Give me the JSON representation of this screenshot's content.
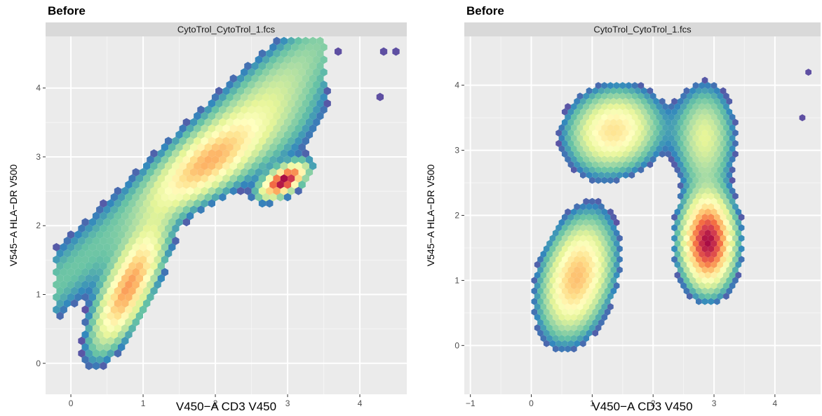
{
  "chart_data": [
    {
      "type": "heatmap",
      "subtype": "hexbin",
      "title": "Before",
      "facet_label": "CytoTrol_CytoTrol_1.fcs",
      "xlabel": "V450−A CD3 V450",
      "ylabel": "V545−A HLA−DR V500",
      "xlim": [
        -0.35,
        4.65
      ],
      "ylim": [
        -0.45,
        4.75
      ],
      "x_ticks": [
        0,
        1,
        2,
        3,
        4
      ],
      "y_ticks": [
        0,
        1,
        2,
        3,
        4
      ],
      "grid": true,
      "legend": "none",
      "colormap": "spectral (low: purple, high: dark red)",
      "hex_width": 0.1,
      "clusters": [
        {
          "x": 0.8,
          "y": 1.1,
          "sx": 0.3,
          "sy": 0.55,
          "rho": 0.75,
          "weight": 1.0
        },
        {
          "x": 1.9,
          "y": 2.9,
          "sx": 0.45,
          "sy": 0.4,
          "rho": 0.7,
          "weight": 0.7
        },
        {
          "x": 2.95,
          "y": 2.65,
          "sx": 0.18,
          "sy": 0.14,
          "rho": 0.6,
          "weight": 1.6
        },
        {
          "x": 2.8,
          "y": 3.5,
          "sx": 0.55,
          "sy": 0.6,
          "rho": 0.5,
          "weight": 0.25
        }
      ],
      "band": {
        "x0": -0.2,
        "y0": 1.15,
        "slope": 0.97,
        "width": 0.42,
        "xmin": -0.2,
        "xmax": 3.55
      },
      "outliers": [
        [
          3.7,
          4.53
        ],
        [
          4.33,
          4.53
        ],
        [
          4.5,
          4.53
        ],
        [
          4.28,
          3.87
        ]
      ]
    },
    {
      "type": "heatmap",
      "subtype": "hexbin",
      "title": "Before",
      "facet_label": "CytoTrol_CytoTrol_1.fcs",
      "xlabel": "V450−A CD3 V450",
      "ylabel": "V545−A HLA−DR V500",
      "xlim": [
        -1.1,
        4.75
      ],
      "ylim": [
        -0.75,
        4.75
      ],
      "x_ticks": [
        -1,
        0,
        1,
        2,
        3,
        4
      ],
      "y_ticks": [
        0,
        1,
        2,
        3,
        4
      ],
      "grid": true,
      "legend": "none",
      "colormap": "spectral (low: purple, high: dark red)",
      "hex_width": 0.1,
      "clusters": [
        {
          "x": 0.75,
          "y": 1.05,
          "sx": 0.35,
          "sy": 0.55,
          "rho": 0.3,
          "weight": 0.9
        },
        {
          "x": 1.35,
          "y": 3.3,
          "sx": 0.45,
          "sy": 0.38,
          "rho": 0.1,
          "weight": 0.75
        },
        {
          "x": 2.9,
          "y": 1.6,
          "sx": 0.25,
          "sy": 0.42,
          "rho": 0.0,
          "weight": 1.6
        },
        {
          "x": 2.85,
          "y": 3.2,
          "sx": 0.3,
          "sy": 0.5,
          "rho": 0.0,
          "weight": 0.45
        }
      ],
      "outliers": [
        [
          4.55,
          4.2
        ],
        [
          4.45,
          3.5
        ]
      ]
    }
  ]
}
